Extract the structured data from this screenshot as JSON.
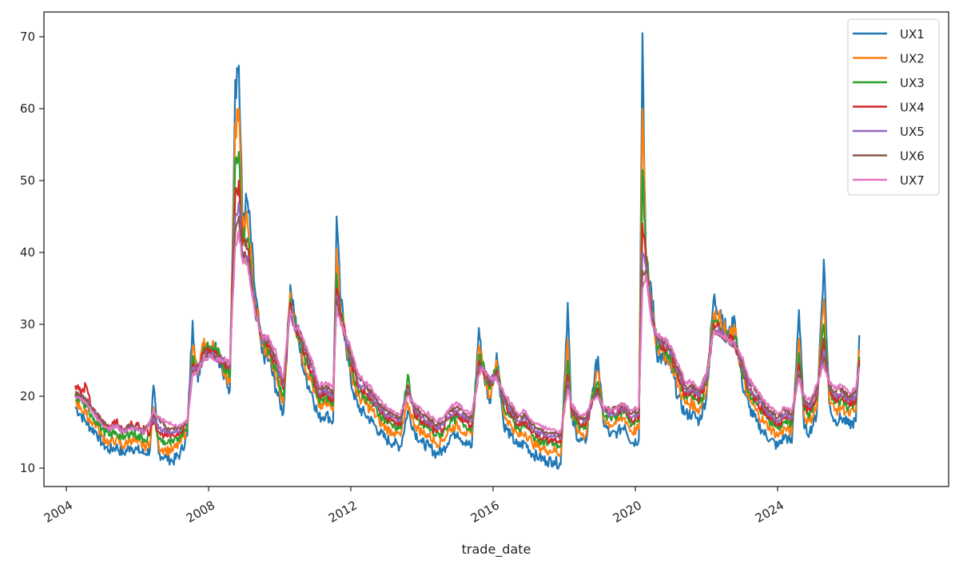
{
  "chart_data": {
    "type": "line",
    "title": "",
    "xlabel": "trade_date",
    "ylabel": "",
    "ylim": [
      7.5,
      73.5
    ],
    "xlim": [
      2003.6,
      2029.0
    ],
    "yticks": [
      10,
      20,
      30,
      40,
      50,
      60,
      70
    ],
    "xticks": [
      "2004",
      "2008",
      "2012",
      "2016",
      "2020",
      "2024"
    ],
    "grid": false,
    "legend_position": "upper right",
    "legend": [
      "UX1",
      "UX2",
      "UX3",
      "UX4",
      "UX5",
      "UX6",
      "UX7"
    ],
    "colors": {
      "UX1": "#1f77b4",
      "UX2": "#ff7f0e",
      "UX3": "#2ca02c",
      "UX4": "#d62728",
      "UX5": "#9467bd",
      "UX6": "#8c564b",
      "UX7": "#e377c2"
    },
    "x": [
      2004.25,
      2004.4,
      2004.55,
      2004.7,
      2004.85,
      2005.0,
      2005.2,
      2005.4,
      2005.6,
      2005.8,
      2006.0,
      2006.2,
      2006.35,
      2006.45,
      2006.6,
      2006.8,
      2007.0,
      2007.2,
      2007.4,
      2007.55,
      2007.7,
      2007.85,
      2008.0,
      2008.2,
      2008.4,
      2008.6,
      2008.75,
      2008.85,
      2008.95,
      2009.1,
      2009.3,
      2009.5,
      2009.7,
      2009.9,
      2010.1,
      2010.3,
      2010.4,
      2010.55,
      2010.7,
      2010.9,
      2011.1,
      2011.3,
      2011.5,
      2011.6,
      2011.7,
      2011.85,
      2012.0,
      2012.2,
      2012.4,
      2012.6,
      2012.8,
      2013.0,
      2013.2,
      2013.4,
      2013.6,
      2013.8,
      2014.0,
      2014.2,
      2014.4,
      2014.6,
      2014.8,
      2015.0,
      2015.2,
      2015.4,
      2015.6,
      2015.7,
      2015.9,
      2016.1,
      2016.3,
      2016.5,
      2016.7,
      2016.9,
      2017.1,
      2017.3,
      2017.5,
      2017.7,
      2017.9,
      2018.1,
      2018.2,
      2018.4,
      2018.6,
      2018.8,
      2018.95,
      2019.1,
      2019.3,
      2019.5,
      2019.7,
      2019.9,
      2020.1,
      2020.2,
      2020.3,
      2020.45,
      2020.6,
      2020.8,
      2021.0,
      2021.2,
      2021.4,
      2021.6,
      2021.8,
      2022.0,
      2022.2,
      2022.4,
      2022.6,
      2022.8,
      2023.0,
      2023.2,
      2023.4,
      2023.6,
      2023.8,
      2024.0,
      2024.2,
      2024.4,
      2024.6,
      2024.75,
      2024.9,
      2025.1,
      2025.3,
      2025.45,
      2025.6,
      2025.8,
      2026.0,
      2026.2,
      2026.3
    ],
    "series": [
      {
        "name": "UX1",
        "values": [
          18.5,
          17.5,
          16.5,
          15.5,
          15.0,
          13.5,
          12.5,
          13.0,
          12.0,
          13.0,
          12.5,
          12.0,
          12.5,
          21.5,
          12.0,
          11.5,
          11.0,
          12.0,
          14.5,
          30.5,
          22.0,
          27.5,
          26.0,
          27.5,
          23.0,
          21.0,
          64.0,
          66.0,
          45.0,
          47.0,
          35.0,
          26.0,
          25.0,
          21.0,
          17.5,
          35.5,
          32.0,
          27.0,
          23.0,
          20.5,
          17.0,
          17.5,
          16.5,
          45.0,
          34.0,
          28.0,
          22.0,
          18.5,
          17.5,
          16.5,
          15.0,
          14.0,
          13.5,
          13.0,
          18.0,
          15.0,
          13.5,
          13.0,
          12.0,
          12.5,
          14.5,
          15.0,
          13.5,
          13.0,
          29.5,
          24.0,
          19.0,
          26.0,
          16.0,
          14.5,
          13.0,
          13.5,
          12.0,
          11.5,
          11.0,
          11.0,
          10.5,
          33.0,
          17.0,
          14.0,
          13.5,
          21.0,
          25.5,
          16.5,
          14.5,
          15.0,
          16.0,
          13.5,
          14.0,
          70.5,
          38.0,
          35.0,
          26.0,
          25.0,
          24.0,
          20.0,
          17.5,
          17.5,
          16.5,
          20.0,
          33.5,
          32.0,
          28.0,
          30.5,
          22.0,
          18.5,
          16.5,
          15.0,
          14.0,
          13.0,
          14.5,
          13.5,
          32.0,
          15.5,
          15.0,
          17.5,
          39.0,
          19.0,
          16.5,
          17.0,
          16.0,
          16.5,
          28.5
        ]
      },
      {
        "name": "UX2",
        "values": [
          19.5,
          18.5,
          17.5,
          16.5,
          16.0,
          14.5,
          13.5,
          14.0,
          13.0,
          14.0,
          13.5,
          13.0,
          13.5,
          18.5,
          13.0,
          12.5,
          12.5,
          13.5,
          15.5,
          27.0,
          23.0,
          27.0,
          26.5,
          27.0,
          24.0,
          22.0,
          58.0,
          60.0,
          43.0,
          44.0,
          33.5,
          27.0,
          26.0,
          22.5,
          19.0,
          34.5,
          31.0,
          28.0,
          24.5,
          22.0,
          18.5,
          19.0,
          18.0,
          40.5,
          33.0,
          28.5,
          23.5,
          20.0,
          19.0,
          18.0,
          16.5,
          15.5,
          15.0,
          14.5,
          19.0,
          16.0,
          15.0,
          14.5,
          13.5,
          14.0,
          15.5,
          16.0,
          15.0,
          14.5,
          27.0,
          24.5,
          20.0,
          25.0,
          17.5,
          16.0,
          14.5,
          15.0,
          13.5,
          13.0,
          12.5,
          12.5,
          12.0,
          28.0,
          17.5,
          15.0,
          14.5,
          20.5,
          23.5,
          17.0,
          16.0,
          16.5,
          17.0,
          15.0,
          15.5,
          60.0,
          39.0,
          33.5,
          27.0,
          26.0,
          25.0,
          21.5,
          19.0,
          19.0,
          18.0,
          21.0,
          31.5,
          30.5,
          28.0,
          29.0,
          23.0,
          19.5,
          18.0,
          16.5,
          15.5,
          14.5,
          15.5,
          15.0,
          28.0,
          17.0,
          16.5,
          18.5,
          33.5,
          20.0,
          18.0,
          18.5,
          17.5,
          18.0,
          26.5
        ]
      },
      {
        "name": "UX3",
        "values": [
          20.0,
          19.5,
          18.5,
          17.5,
          16.5,
          15.5,
          14.5,
          15.0,
          14.0,
          15.0,
          14.5,
          14.0,
          14.5,
          17.5,
          14.0,
          13.5,
          13.5,
          14.5,
          16.0,
          25.5,
          23.5,
          26.5,
          26.5,
          26.5,
          24.5,
          23.0,
          53.0,
          54.0,
          42.0,
          42.0,
          32.5,
          27.5,
          26.5,
          23.5,
          20.0,
          33.5,
          30.5,
          28.5,
          25.5,
          23.0,
          19.5,
          20.0,
          19.0,
          37.0,
          32.0,
          28.5,
          24.5,
          21.0,
          20.0,
          19.0,
          17.5,
          16.5,
          16.0,
          15.5,
          23.0,
          17.0,
          16.0,
          15.5,
          14.5,
          15.0,
          16.5,
          17.0,
          16.0,
          15.5,
          25.5,
          24.5,
          21.0,
          24.0,
          18.5,
          17.0,
          15.5,
          16.0,
          14.5,
          14.0,
          13.5,
          13.5,
          13.0,
          25.0,
          18.0,
          16.0,
          15.5,
          20.0,
          22.0,
          17.5,
          17.0,
          17.5,
          18.0,
          16.0,
          16.5,
          51.5,
          39.5,
          32.5,
          27.5,
          26.5,
          25.5,
          22.5,
          20.0,
          20.0,
          19.0,
          21.5,
          30.5,
          29.5,
          28.0,
          28.0,
          23.5,
          20.5,
          19.0,
          17.5,
          16.5,
          15.5,
          16.5,
          16.0,
          26.0,
          18.0,
          17.5,
          19.5,
          30.0,
          21.0,
          19.0,
          19.5,
          18.5,
          19.0,
          25.5
        ]
      },
      {
        "name": "UX4",
        "values": [
          21.5,
          20.5,
          21.5,
          18.5,
          17.5,
          16.5,
          15.5,
          16.5,
          15.0,
          16.0,
          16.0,
          15.5,
          15.0,
          17.0,
          15.0,
          14.5,
          14.5,
          15.0,
          16.5,
          24.5,
          23.5,
          26.0,
          26.5,
          26.0,
          25.0,
          24.0,
          48.0,
          50.0,
          41.0,
          40.5,
          32.0,
          28.0,
          27.0,
          24.5,
          21.0,
          33.0,
          30.0,
          29.0,
          26.0,
          23.5,
          20.0,
          20.5,
          19.5,
          35.0,
          31.5,
          28.5,
          25.0,
          21.5,
          20.5,
          19.5,
          18.0,
          17.0,
          16.5,
          16.0,
          21.5,
          17.5,
          16.5,
          16.0,
          15.0,
          15.5,
          17.0,
          17.5,
          16.5,
          16.0,
          24.5,
          24.0,
          21.5,
          23.5,
          19.0,
          17.5,
          16.0,
          16.5,
          15.0,
          14.5,
          14.0,
          14.0,
          13.5,
          23.0,
          18.0,
          16.5,
          16.0,
          19.5,
          21.0,
          18.0,
          17.5,
          18.0,
          18.5,
          16.5,
          17.0,
          44.0,
          39.0,
          32.0,
          28.0,
          27.0,
          26.0,
          23.0,
          20.5,
          20.5,
          19.5,
          22.0,
          30.0,
          29.0,
          28.0,
          27.5,
          24.0,
          21.0,
          19.5,
          18.0,
          17.0,
          16.0,
          17.0,
          16.5,
          24.5,
          18.5,
          18.0,
          20.0,
          28.0,
          21.5,
          19.5,
          20.0,
          19.0,
          19.5,
          25.0
        ]
      },
      {
        "name": "UX5",
        "values": [
          20.5,
          20.0,
          19.5,
          18.5,
          17.5,
          16.5,
          15.5,
          16.0,
          15.0,
          16.0,
          15.5,
          15.0,
          16.0,
          17.0,
          15.5,
          15.0,
          15.0,
          15.5,
          16.5,
          24.0,
          23.5,
          25.5,
          26.0,
          25.5,
          25.0,
          24.0,
          45.0,
          47.0,
          40.0,
          39.5,
          32.0,
          28.0,
          27.5,
          25.0,
          21.5,
          32.5,
          30.0,
          29.0,
          26.5,
          24.0,
          20.5,
          21.0,
          20.0,
          34.0,
          31.0,
          28.5,
          25.5,
          22.0,
          21.0,
          20.0,
          18.5,
          17.5,
          17.0,
          16.5,
          21.0,
          18.0,
          17.0,
          16.5,
          15.5,
          16.0,
          17.5,
          18.0,
          17.0,
          16.5,
          24.0,
          24.0,
          22.0,
          23.0,
          19.5,
          18.0,
          16.5,
          17.0,
          15.5,
          15.0,
          14.5,
          14.5,
          14.0,
          22.0,
          18.5,
          17.0,
          16.5,
          19.5,
          20.5,
          18.0,
          17.5,
          18.0,
          18.5,
          17.0,
          17.5,
          40.0,
          38.0,
          31.5,
          28.0,
          27.5,
          26.5,
          23.5,
          21.0,
          21.0,
          20.0,
          22.5,
          29.5,
          29.0,
          28.0,
          27.5,
          24.5,
          21.5,
          20.0,
          18.5,
          17.5,
          16.5,
          17.5,
          17.0,
          23.5,
          19.0,
          18.5,
          20.5,
          26.5,
          22.0,
          20.0,
          20.5,
          19.5,
          20.0,
          24.5
        ]
      },
      {
        "name": "UX6",
        "values": [
          20.5,
          20.0,
          19.5,
          18.5,
          17.5,
          16.5,
          15.5,
          16.0,
          15.0,
          16.0,
          15.5,
          15.0,
          16.5,
          17.5,
          17.0,
          15.5,
          15.5,
          15.5,
          16.5,
          23.5,
          23.5,
          25.0,
          26.0,
          25.5,
          25.0,
          24.5,
          43.0,
          45.0,
          39.5,
          39.0,
          32.0,
          28.5,
          27.5,
          25.5,
          22.0,
          32.5,
          30.0,
          29.0,
          27.0,
          24.5,
          21.0,
          21.5,
          20.5,
          33.5,
          31.0,
          28.5,
          26.0,
          22.5,
          21.5,
          20.5,
          19.0,
          18.0,
          17.5,
          17.0,
          20.5,
          18.5,
          17.5,
          17.0,
          16.0,
          16.5,
          18.0,
          18.5,
          17.5,
          17.0,
          23.5,
          24.0,
          22.0,
          23.0,
          20.0,
          18.5,
          17.0,
          17.5,
          16.0,
          15.5,
          15.0,
          15.0,
          14.5,
          21.5,
          18.5,
          17.0,
          17.0,
          19.5,
          20.5,
          18.5,
          18.0,
          18.5,
          19.0,
          17.5,
          18.0,
          37.5,
          37.5,
          31.0,
          28.5,
          27.5,
          26.5,
          24.0,
          21.5,
          21.5,
          20.5,
          23.0,
          29.5,
          28.5,
          28.0,
          27.0,
          25.0,
          22.0,
          20.5,
          19.0,
          18.0,
          17.0,
          18.0,
          17.5,
          23.0,
          19.5,
          19.0,
          21.0,
          25.5,
          22.0,
          20.5,
          21.0,
          20.0,
          20.5,
          24.5
        ]
      },
      {
        "name": "UX7",
        "values": [
          20.0,
          19.5,
          19.0,
          18.0,
          17.0,
          16.0,
          15.5,
          16.0,
          15.0,
          15.5,
          15.5,
          15.0,
          16.5,
          18.0,
          17.0,
          16.5,
          16.0,
          16.0,
          16.5,
          23.0,
          23.5,
          25.0,
          25.5,
          25.0,
          25.0,
          24.5,
          41.0,
          43.0,
          39.0,
          38.5,
          32.0,
          28.5,
          28.0,
          26.0,
          22.5,
          32.0,
          30.0,
          29.0,
          27.5,
          25.0,
          21.5,
          22.0,
          21.0,
          32.5,
          30.5,
          28.5,
          26.5,
          23.0,
          22.0,
          21.0,
          19.5,
          18.5,
          18.0,
          17.5,
          20.0,
          19.0,
          18.0,
          17.5,
          16.5,
          17.0,
          18.5,
          19.0,
          18.0,
          17.5,
          23.0,
          24.0,
          22.5,
          22.5,
          20.5,
          19.0,
          17.5,
          18.0,
          16.5,
          16.0,
          15.5,
          15.5,
          15.0,
          21.0,
          19.0,
          17.5,
          17.5,
          19.5,
          20.0,
          18.5,
          18.0,
          18.5,
          19.0,
          18.0,
          18.5,
          35.0,
          37.0,
          30.5,
          28.5,
          28.0,
          27.0,
          24.5,
          22.0,
          22.0,
          21.0,
          23.0,
          29.0,
          28.5,
          28.0,
          27.0,
          25.5,
          22.5,
          21.0,
          19.5,
          18.5,
          17.5,
          18.5,
          18.0,
          22.5,
          20.0,
          19.5,
          21.5,
          24.5,
          22.0,
          21.0,
          21.5,
          20.5,
          21.0,
          24.0
        ]
      }
    ]
  },
  "axes": {
    "xlabel": "trade_date",
    "yticks": [
      "10",
      "20",
      "30",
      "40",
      "50",
      "60",
      "70"
    ],
    "xticks": [
      "2004",
      "2008",
      "2012",
      "2016",
      "2020",
      "2024"
    ]
  },
  "legend": {
    "items": [
      {
        "label": "UX1",
        "color": "#1f77b4"
      },
      {
        "label": "UX2",
        "color": "#ff7f0e"
      },
      {
        "label": "UX3",
        "color": "#2ca02c"
      },
      {
        "label": "UX4",
        "color": "#d62728"
      },
      {
        "label": "UX5",
        "color": "#9467bd"
      },
      {
        "label": "UX6",
        "color": "#8c564b"
      },
      {
        "label": "UX7",
        "color": "#e377c2"
      }
    ]
  }
}
